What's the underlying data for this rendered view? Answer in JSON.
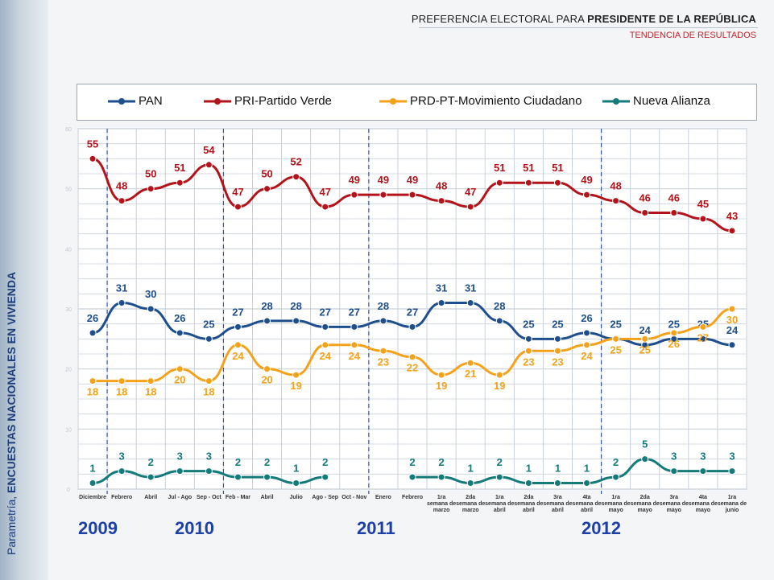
{
  "header": {
    "title_prefix": "PREFERENCIA ELECTORAL PARA ",
    "title_bold": "PRESIDENTE DE LA REPÚBLICA",
    "subtitle": "TENDENCIA DE RESULTADOS"
  },
  "side_label": {
    "prefix": "Parametría, ",
    "bold": "ENCUESTAS NACIONALES EN VIVIENDA"
  },
  "years": [
    "2009",
    "2010",
    "2011",
    "2012"
  ],
  "colors": {
    "PAN": "#1f4e8c",
    "PRI": "#b3141b",
    "PRD": "#f5a21b",
    "NA": "#147a7a",
    "year": "#1c3fa8",
    "grid": "#c9d2dc"
  },
  "chart_data": {
    "type": "line",
    "ylim": [
      0,
      60
    ],
    "grid": true,
    "legend_position": "top",
    "categories": [
      "Diciembre",
      "Febrero",
      "Abril",
      "Jul - Ago",
      "Sep - Oct",
      "Feb - Mar",
      "Abril",
      "Julio",
      "Ago - Sep",
      "Oct - Nov",
      "Enero",
      "Febrero",
      "1ra semana de marzo",
      "2da semana de marzo",
      "1ra semana de abril",
      "2da semana de abril",
      "3ra semana de abril",
      "4ta semana de abril",
      "1ra semana de mayo",
      "2da semana de mayo",
      "3ra semana de mayo",
      "4ta semana de mayo",
      "1ra semana de junio"
    ],
    "category_labels": [
      [
        "Diciembre"
      ],
      [
        "Febrero"
      ],
      [
        "Abril"
      ],
      [
        "Jul - Ago"
      ],
      [
        "Sep - Oct"
      ],
      [
        "Feb - Mar"
      ],
      [
        "Abril"
      ],
      [
        "Julio"
      ],
      [
        "Ago - Sep"
      ],
      [
        "Oct - Nov"
      ],
      [
        "Enero"
      ],
      [
        "Febrero"
      ],
      [
        "1ra",
        "semana de",
        "marzo"
      ],
      [
        "2da",
        "semana de",
        "marzo"
      ],
      [
        "1ra",
        "semana de",
        "abril"
      ],
      [
        "2da",
        "semana de",
        "abril"
      ],
      [
        "3ra",
        "semana de",
        "abril"
      ],
      [
        "4ta",
        "semana de",
        "abril"
      ],
      [
        "1ra",
        "semana de",
        "mayo"
      ],
      [
        "2da",
        "semana de",
        "mayo"
      ],
      [
        "3ra",
        "semana de",
        "mayo"
      ],
      [
        "4ta",
        "semana de",
        "mayo"
      ],
      [
        "1ra",
        "semana de",
        "junio"
      ]
    ],
    "year_dividers_after_index": [
      0,
      4,
      9,
      17
    ],
    "series": [
      {
        "key": "PAN",
        "name": "PAN",
        "values": [
          26,
          31,
          30,
          26,
          25,
          27,
          28,
          28,
          27,
          27,
          28,
          27,
          31,
          31,
          28,
          25,
          25,
          26,
          25,
          24,
          25,
          25,
          24
        ]
      },
      {
        "key": "PRI",
        "name": "PRI-Partido Verde",
        "values": [
          55,
          48,
          50,
          51,
          54,
          47,
          50,
          52,
          47,
          49,
          49,
          49,
          48,
          47,
          51,
          51,
          51,
          49,
          48,
          46,
          46,
          45,
          43
        ]
      },
      {
        "key": "PRD",
        "name": "PRD-PT-Movimiento Ciudadano",
        "values": [
          18,
          18,
          18,
          20,
          18,
          24,
          20,
          19,
          24,
          24,
          23,
          22,
          19,
          21,
          19,
          23,
          23,
          24,
          25,
          25,
          26,
          27,
          30
        ]
      },
      {
        "key": "NA",
        "name": "Nueva Alianza",
        "values": [
          1,
          3,
          2,
          3,
          3,
          2,
          2,
          1,
          2,
          null,
          null,
          2,
          2,
          1,
          2,
          1,
          1,
          1,
          2,
          5,
          3,
          3,
          3
        ]
      }
    ]
  }
}
